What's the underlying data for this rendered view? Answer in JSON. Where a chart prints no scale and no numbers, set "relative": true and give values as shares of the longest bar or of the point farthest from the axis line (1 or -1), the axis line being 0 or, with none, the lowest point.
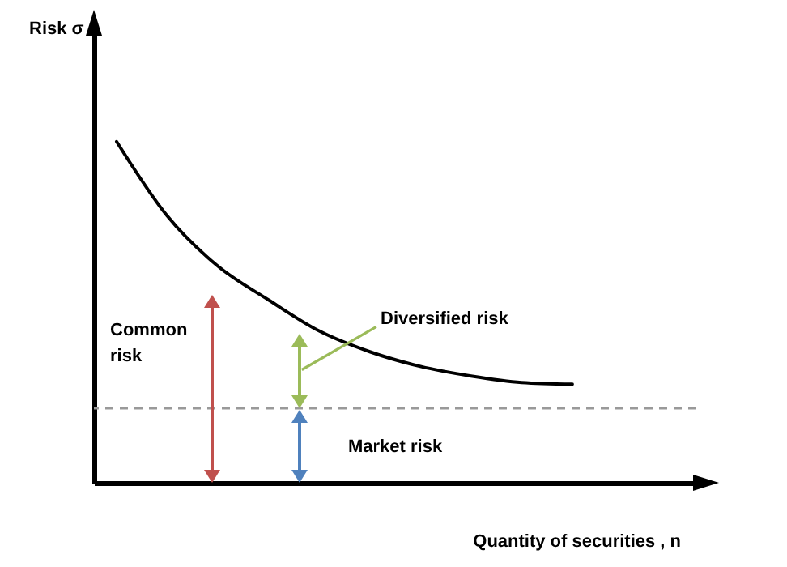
{
  "chart_data": {
    "type": "line",
    "relative": true,
    "xlabel": "Quantity of securities , n",
    "categories": [
      null,
      null,
      null,
      null,
      null,
      null,
      null,
      null,
      null,
      null,
      null,
      null
    ],
    "series": [
      {
        "color": "#000000",
        "values": [
          1,
          0.782,
          0.635,
          0.536,
          0.445,
          0.384,
          0.341,
          0.313,
          0.294,
          0.289,
          null,
          null
        ]
      }
    ],
    "ref_lines": [
      {
        "axis": "y",
        "value": 0.218,
        "color": "#999999",
        "line_style": "dashed"
      }
    ],
    "annotations": [
      "Risk σ",
      "Common risk",
      "Diversified risk",
      "Market risk"
    ],
    "marker": "none",
    "grid": false
  }
}
